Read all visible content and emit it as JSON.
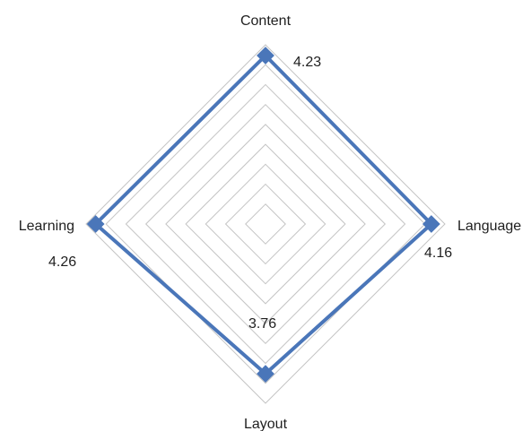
{
  "chart_data": {
    "type": "radar",
    "categories": [
      "Content",
      "Language",
      "Layout",
      "Learning"
    ],
    "series": [
      {
        "values": [
          4.23,
          4.16,
          3.76,
          4.26
        ]
      }
    ],
    "data_labels": [
      "4.23",
      "4.16",
      "3.76",
      "4.26"
    ],
    "rmin": 0,
    "rmax": 4.5,
    "rings": 9,
    "grid": true,
    "legend": "none",
    "colors": {
      "series": "#4a76b9",
      "grid": "#c4c4c4"
    }
  }
}
